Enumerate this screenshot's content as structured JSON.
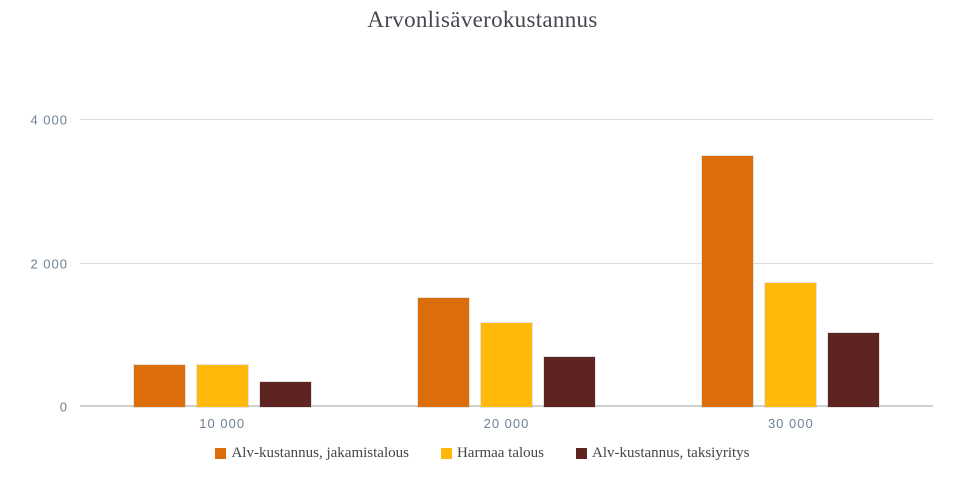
{
  "chart_data": {
    "type": "bar",
    "title": "Arvonlisäverokustannus",
    "categories": [
      "10 000",
      "20 000",
      "30 000"
    ],
    "series": [
      {
        "name": "Alv-kustannus, jakamistalous",
        "color": "#DC6D0B",
        "values": [
          590,
          1520,
          3500
        ]
      },
      {
        "name": "Harmaa talous",
        "color": "#FEB90B",
        "values": [
          590,
          1170,
          1730
        ]
      },
      {
        "name": "Alv-kustannus, taksiyritys",
        "color": "#5E2422",
        "values": [
          350,
          700,
          1030
        ]
      }
    ],
    "xlabel": "",
    "ylabel": "",
    "ylim": [
      0,
      4000
    ],
    "yticks": [
      {
        "value": 0,
        "label": "0"
      },
      {
        "value": 2000,
        "label": "2 000"
      },
      {
        "value": 4000,
        "label": "4 000"
      }
    ],
    "grid": true,
    "legend_position": "bottom",
    "colors": {
      "background": "#FFFFFF",
      "gridline": "#DCDCDC",
      "baseline": "#D0D0D0",
      "tick_text": "#6F8098",
      "title_text": "#45464E",
      "legend_text": "#44454A"
    }
  }
}
